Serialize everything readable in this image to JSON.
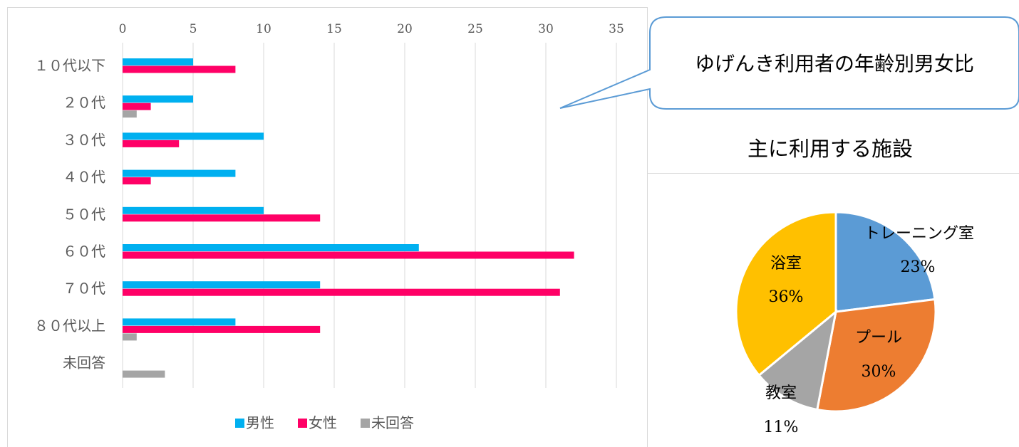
{
  "callout": {
    "text": "ゆげんき利用者の年齢別男女比"
  },
  "chart_data": [
    {
      "type": "bar",
      "orientation": "horizontal",
      "categories": [
        "１０代以下",
        "２０代",
        "３０代",
        "４０代",
        "５０代",
        "６０代",
        "７０代",
        "８０代以上",
        "未回答"
      ],
      "series": [
        {
          "name": "男性",
          "color": "#00B0F0",
          "values": [
            5,
            5,
            10,
            8,
            10,
            21,
            14,
            8,
            0
          ]
        },
        {
          "name": "女性",
          "color": "#FF0066",
          "values": [
            8,
            2,
            4,
            2,
            14,
            32,
            31,
            14,
            0
          ]
        },
        {
          "name": "未回答",
          "color": "#A5A5A5",
          "values": [
            0,
            1,
            0,
            0,
            0,
            0,
            0,
            1,
            3
          ]
        }
      ],
      "xlim": [
        0,
        35
      ],
      "xticks": [
        0,
        5,
        10,
        15,
        20,
        25,
        30,
        35
      ],
      "x_axis_position": "top",
      "grid": true,
      "legend_position": "bottom"
    },
    {
      "type": "pie",
      "title": "主に利用する施設",
      "slices": [
        {
          "label": "トレーニング室",
          "value": 23,
          "pct_label": "23%",
          "color": "#5B9BD5"
        },
        {
          "label": "プール",
          "value": 30,
          "pct_label": "30%",
          "color": "#ED7D31"
        },
        {
          "label": "教室",
          "value": 11,
          "pct_label": "11%",
          "color": "#A5A5A5"
        },
        {
          "label": "浴室",
          "value": 36,
          "pct_label": "36%",
          "color": "#FFC000"
        }
      ]
    }
  ]
}
